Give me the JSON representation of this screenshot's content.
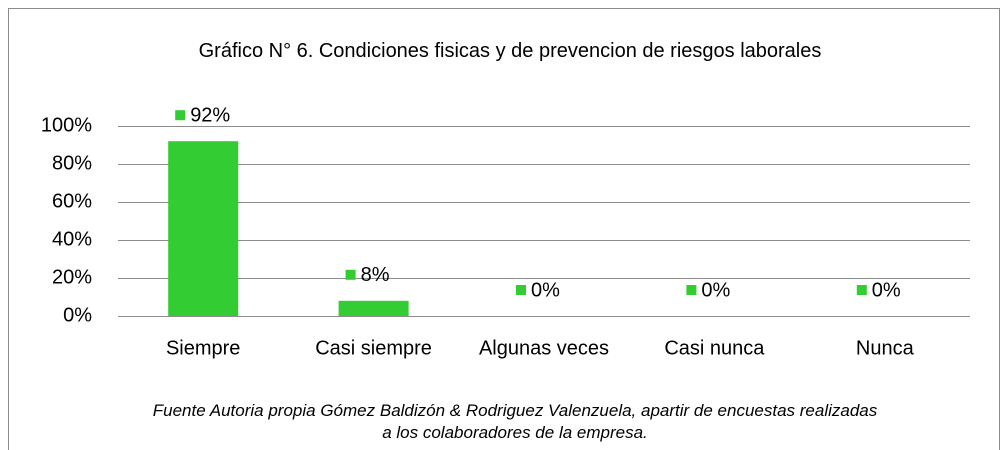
{
  "chart_data": {
    "type": "bar",
    "title": "Gráfico N° 6. Condiciones fisicas y de prevencion de riesgos laborales",
    "categories": [
      "Siempre",
      "Casi siempre",
      "Algunas veces",
      "Casi nunca",
      "Nunca"
    ],
    "values": [
      92,
      8,
      0,
      0,
      0
    ],
    "value_labels": [
      "92%",
      "8%",
      "0%",
      "0%",
      "0%"
    ],
    "color": "#33cc33",
    "ylim": [
      0,
      100
    ],
    "yticks": [
      {
        "value": 0,
        "label": "0%"
      },
      {
        "value": 20,
        "label": "20%"
      },
      {
        "value": 40,
        "label": "40%"
      },
      {
        "value": 60,
        "label": "60%"
      },
      {
        "value": 80,
        "label": "80%"
      },
      {
        "value": 100,
        "label": "100%"
      }
    ],
    "grid": true,
    "source": "Fuente Autoria propia Gómez Baldizón & Rodriguez Valenzuela, apartir de encuestas realizadas a los colaboradores de la empresa."
  }
}
